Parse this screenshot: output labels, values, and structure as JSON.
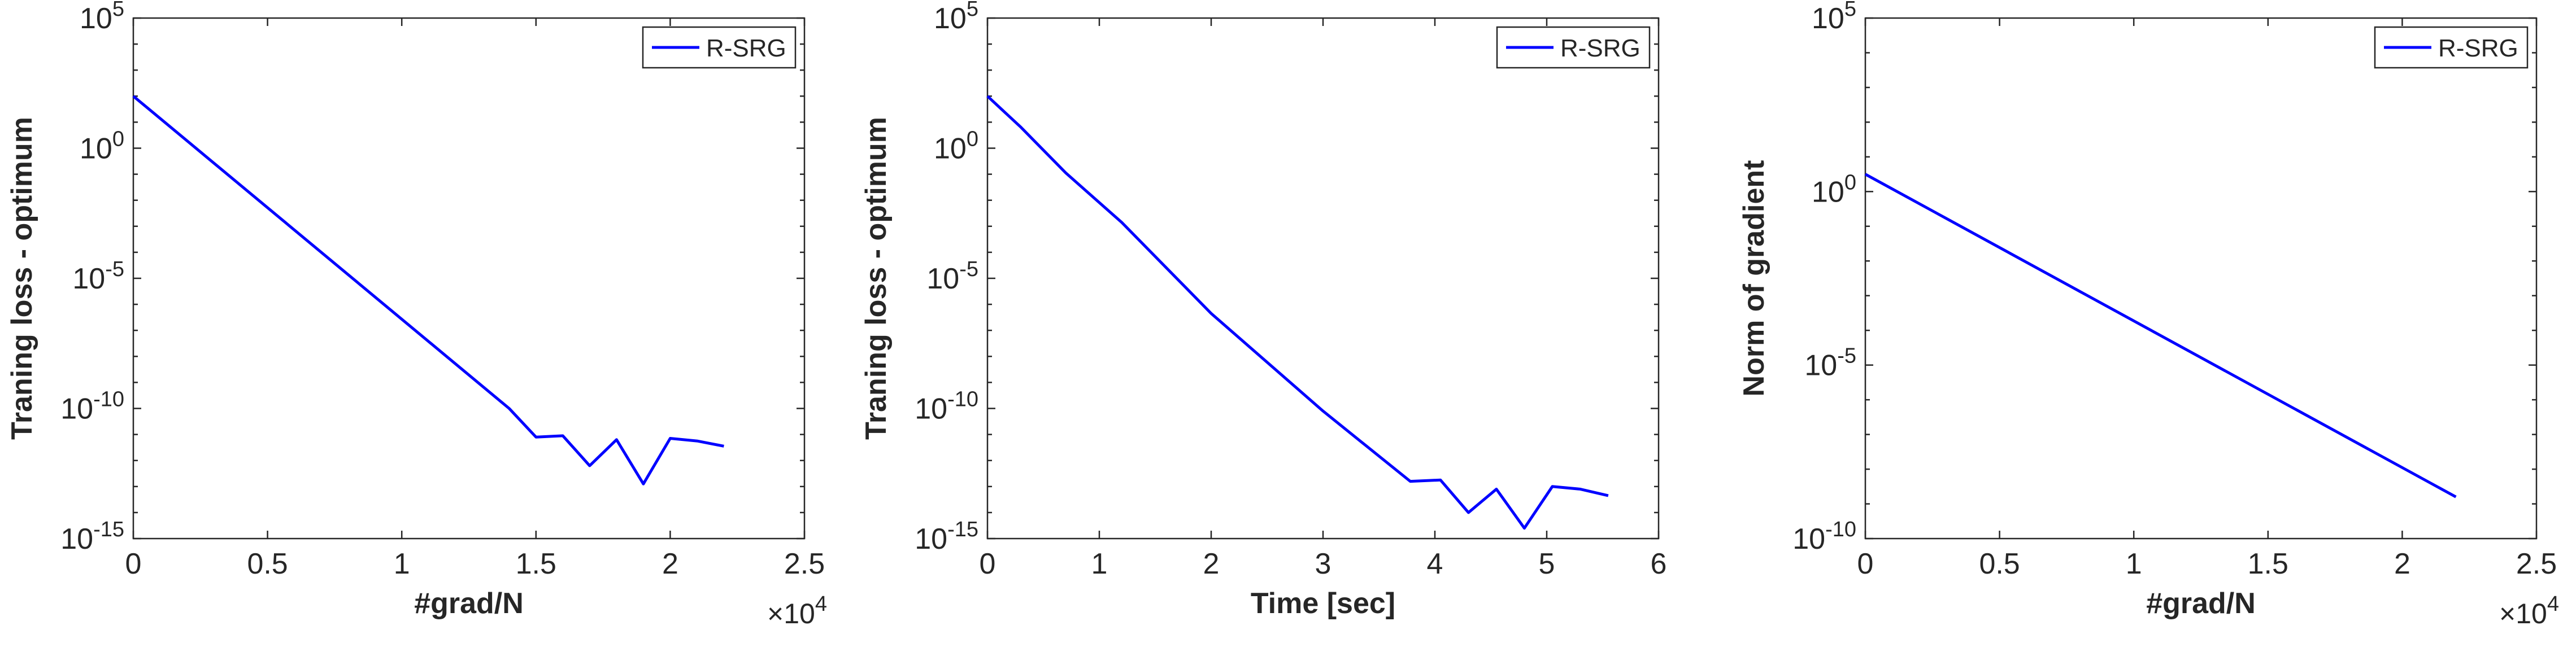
{
  "chart_data": [
    {
      "type": "line",
      "xlabel": "#grad/N",
      "ylabel": "Traning loss - optimum",
      "x_multiplier": "×10",
      "x_multiplier_exp": "4",
      "xlim": [
        0,
        2.5
      ],
      "ylim_exp": [
        -15,
        5
      ],
      "yscale": "log",
      "xticks": [
        0,
        0.5,
        1,
        1.5,
        2,
        2.5
      ],
      "xtick_labels": [
        "0",
        "0.5",
        "1",
        "1.5",
        "2",
        "2.5"
      ],
      "yticks_exp": [
        -15,
        -10,
        -5,
        0,
        5
      ],
      "ytick_labels": [
        "-15",
        "-10",
        "-5",
        "0",
        "5"
      ],
      "ytick_base": "10",
      "legend": "top-right",
      "series": [
        {
          "name": "R-SRG",
          "color": "#0000ff",
          "x": [
            0,
            1.4,
            1.5,
            1.6,
            1.7,
            1.8,
            1.9,
            2.0,
            2.1,
            2.2
          ],
          "y_exp": [
            2.0,
            -10.0,
            -11.1,
            -11.05,
            -12.2,
            -11.2,
            -12.9,
            -11.15,
            -11.25,
            -11.45
          ]
        }
      ]
    },
    {
      "type": "line",
      "xlabel": "Time [sec]",
      "ylabel": "Traning loss - optimum",
      "xlim": [
        0,
        6
      ],
      "ylim_exp": [
        -15,
        5
      ],
      "yscale": "log",
      "xticks": [
        0,
        1,
        2,
        3,
        4,
        5,
        6
      ],
      "xtick_labels": [
        "0",
        "1",
        "2",
        "3",
        "4",
        "5",
        "6"
      ],
      "yticks_exp": [
        -15,
        -10,
        -5,
        0,
        5
      ],
      "ytick_labels": [
        "-15",
        "-10",
        "-5",
        "0",
        "5"
      ],
      "ytick_base": "10",
      "legend": "top-right",
      "series": [
        {
          "name": "R-SRG",
          "color": "#0000ff",
          "x": [
            0,
            0.3,
            0.7,
            1.2,
            2.0,
            3.0,
            3.78,
            4.05,
            4.3,
            4.55,
            4.8,
            5.05,
            5.3,
            5.55
          ],
          "y_exp": [
            2.0,
            0.8,
            -0.95,
            -2.85,
            -6.35,
            -10.1,
            -12.8,
            -12.75,
            -14.0,
            -13.1,
            -14.6,
            -13.0,
            -13.1,
            -13.35
          ]
        }
      ]
    },
    {
      "type": "line",
      "xlabel": "#grad/N",
      "ylabel": "Norm of gradient",
      "x_multiplier": "×10",
      "x_multiplier_exp": "4",
      "xlim": [
        0,
        2.5
      ],
      "ylim_exp": [
        -10,
        5
      ],
      "yscale": "log",
      "xticks": [
        0,
        0.5,
        1,
        1.5,
        2,
        2.5
      ],
      "xtick_labels": [
        "0",
        "0.5",
        "1",
        "1.5",
        "2",
        "2.5"
      ],
      "yticks_exp": [
        -10,
        -5,
        0,
        5
      ],
      "ytick_labels": [
        "-10",
        "-5",
        "0",
        "5"
      ],
      "ytick_base": "10",
      "legend": "top-right",
      "series": [
        {
          "name": "R-SRG",
          "color": "#0000ff",
          "x": [
            0,
            2.2
          ],
          "y_exp": [
            0.5,
            -8.8
          ]
        }
      ]
    }
  ]
}
